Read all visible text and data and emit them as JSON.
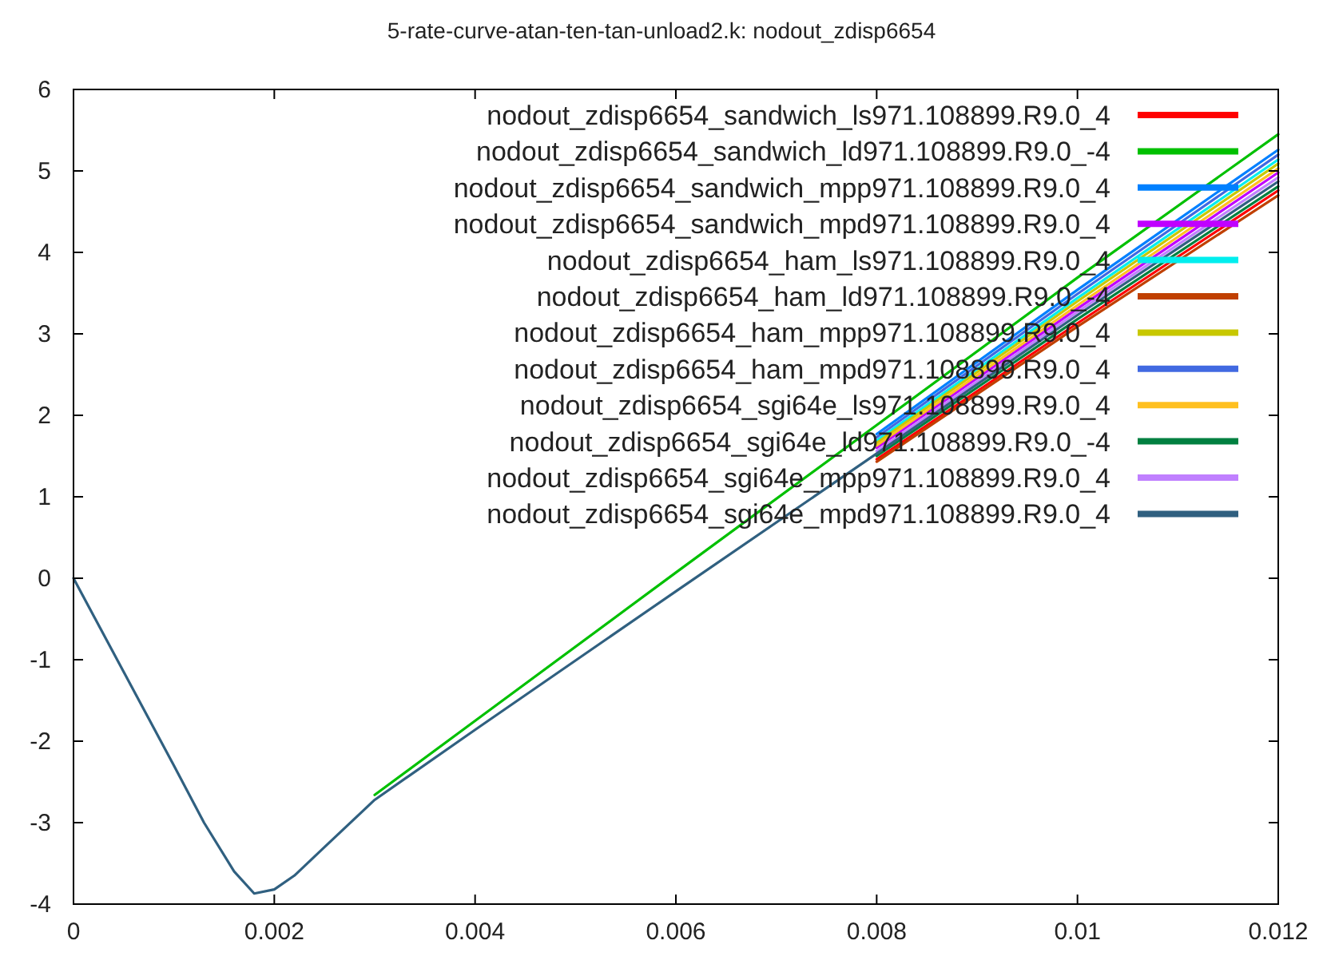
{
  "chart_data": {
    "type": "line",
    "title": "5-rate-curve-atan-ten-tan-unload2.k: nodout_zdisp6654",
    "x": [
      0,
      0.0005,
      0.001,
      0.0013,
      0.0016,
      0.0018,
      0.002,
      0.0022,
      0.0025,
      0.003,
      0.004,
      0.006,
      0.008,
      0.01,
      0.012
    ],
    "xlim": [
      0,
      0.012
    ],
    "xticks": [
      0,
      0.002,
      0.004,
      0.006,
      0.008,
      0.01,
      0.012
    ],
    "ylim": [
      -4,
      6
    ],
    "yticks": [
      -4,
      -3,
      -2,
      -1,
      0,
      1,
      2,
      3,
      4,
      5,
      6
    ],
    "grid": false,
    "legend": "top right",
    "marker": "none",
    "line_style": "solid",
    "series": [
      {
        "name": "nodout_zdisp6654_sandwich_ls971.108899.R9.0_4",
        "color": "#ff0000",
        "x": [
          0.008,
          0.01,
          0.012
        ],
        "values": [
          1.46,
          3.13,
          4.76
        ]
      },
      {
        "name": "nodout_zdisp6654_sandwich_ld971.108899.R9.0_-4",
        "color": "#00c000",
        "x": [
          0.003,
          0.004,
          0.006,
          0.008,
          0.01,
          0.012
        ],
        "values": [
          -2.66,
          -1.75,
          0.07,
          1.88,
          3.69,
          5.45
        ]
      },
      {
        "name": "nodout_zdisp6654_sandwich_mpp971.108899.R9.0_4",
        "color": "#0080ff",
        "x": [
          0.008,
          0.01,
          0.012
        ],
        "values": [
          1.77,
          3.54,
          5.26
        ]
      },
      {
        "name": "nodout_zdisp6654_sandwich_mpd971.108899.R9.0_4",
        "color": "#c000ff",
        "x": [
          0.008,
          0.01,
          0.012
        ],
        "values": [
          1.6,
          3.31,
          4.98
        ]
      },
      {
        "name": "nodout_zdisp6654_ham_ls971.108899.R9.0_4",
        "color": "#00eeee",
        "x": [
          0.008,
          0.01,
          0.012
        ],
        "values": [
          1.69,
          3.44,
          5.14
        ]
      },
      {
        "name": "nodout_zdisp6654_ham_ld971.108899.R9.0_-4",
        "color": "#c04000",
        "x": [
          0.008,
          0.01,
          0.012
        ],
        "values": [
          1.43,
          3.09,
          4.7
        ]
      },
      {
        "name": "nodout_zdisp6654_ham_mpp971.108899.R9.0_4",
        "color": "#c8c800",
        "x": [
          0.008,
          0.01,
          0.012
        ],
        "values": [
          1.66,
          3.4,
          5.09
        ]
      },
      {
        "name": "nodout_zdisp6654_ham_mpd971.108899.R9.0_4",
        "color": "#4169e1",
        "x": [
          0.008,
          0.01,
          0.012
        ],
        "values": [
          1.73,
          3.49,
          5.2
        ]
      },
      {
        "name": "nodout_zdisp6654_sgi64e_ls971.108899.R9.0_4",
        "color": "#ffc020",
        "x": [
          0.008,
          0.01,
          0.012
        ],
        "values": [
          1.63,
          3.35,
          5.03
        ]
      },
      {
        "name": "nodout_zdisp6654_sgi64e_ld971.108899.R9.0_-4",
        "color": "#008040",
        "x": [
          0.008,
          0.01,
          0.012
        ],
        "values": [
          1.5,
          3.18,
          4.81
        ]
      },
      {
        "name": "nodout_zdisp6654_sgi64e_mpp971.108899.R9.0_4",
        "color": "#c080ff",
        "x": [
          0.008,
          0.01,
          0.012
        ],
        "values": [
          1.56,
          3.27,
          4.92
        ]
      },
      {
        "name": "nodout_zdisp6654_sgi64e_mpd971.108899.R9.0_4",
        "color": "#306080",
        "values": [
          0,
          -1.15,
          -2.3,
          -3.0,
          -3.6,
          -3.87,
          -3.82,
          -3.65,
          -3.3,
          -2.72,
          -1.86,
          -0.16,
          1.53,
          3.23,
          4.87
        ]
      }
    ]
  }
}
